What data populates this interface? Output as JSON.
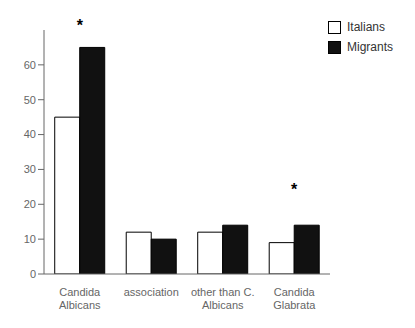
{
  "chart_data": {
    "type": "bar",
    "categories": [
      "Candida\nAlbicans",
      "association",
      "other than C.\nAlbicans",
      "Candida\nGlabrata"
    ],
    "series": [
      {
        "name": "Italians",
        "color": "#ffffff",
        "values": [
          45,
          12,
          12,
          9
        ]
      },
      {
        "name": "Migrants",
        "color": "#111111",
        "values": [
          65,
          10,
          14,
          14
        ]
      }
    ],
    "ylim": [
      0,
      70
    ],
    "yticks": [
      0,
      10,
      20,
      30,
      40,
      50,
      60
    ],
    "grid": false,
    "legend": "upper right",
    "annotations": [
      {
        "text": "*",
        "x": "Candida\nAlbicans",
        "y": 68
      },
      {
        "text": "*",
        "x": "Candida\nGlabrata",
        "y": 21
      }
    ]
  }
}
